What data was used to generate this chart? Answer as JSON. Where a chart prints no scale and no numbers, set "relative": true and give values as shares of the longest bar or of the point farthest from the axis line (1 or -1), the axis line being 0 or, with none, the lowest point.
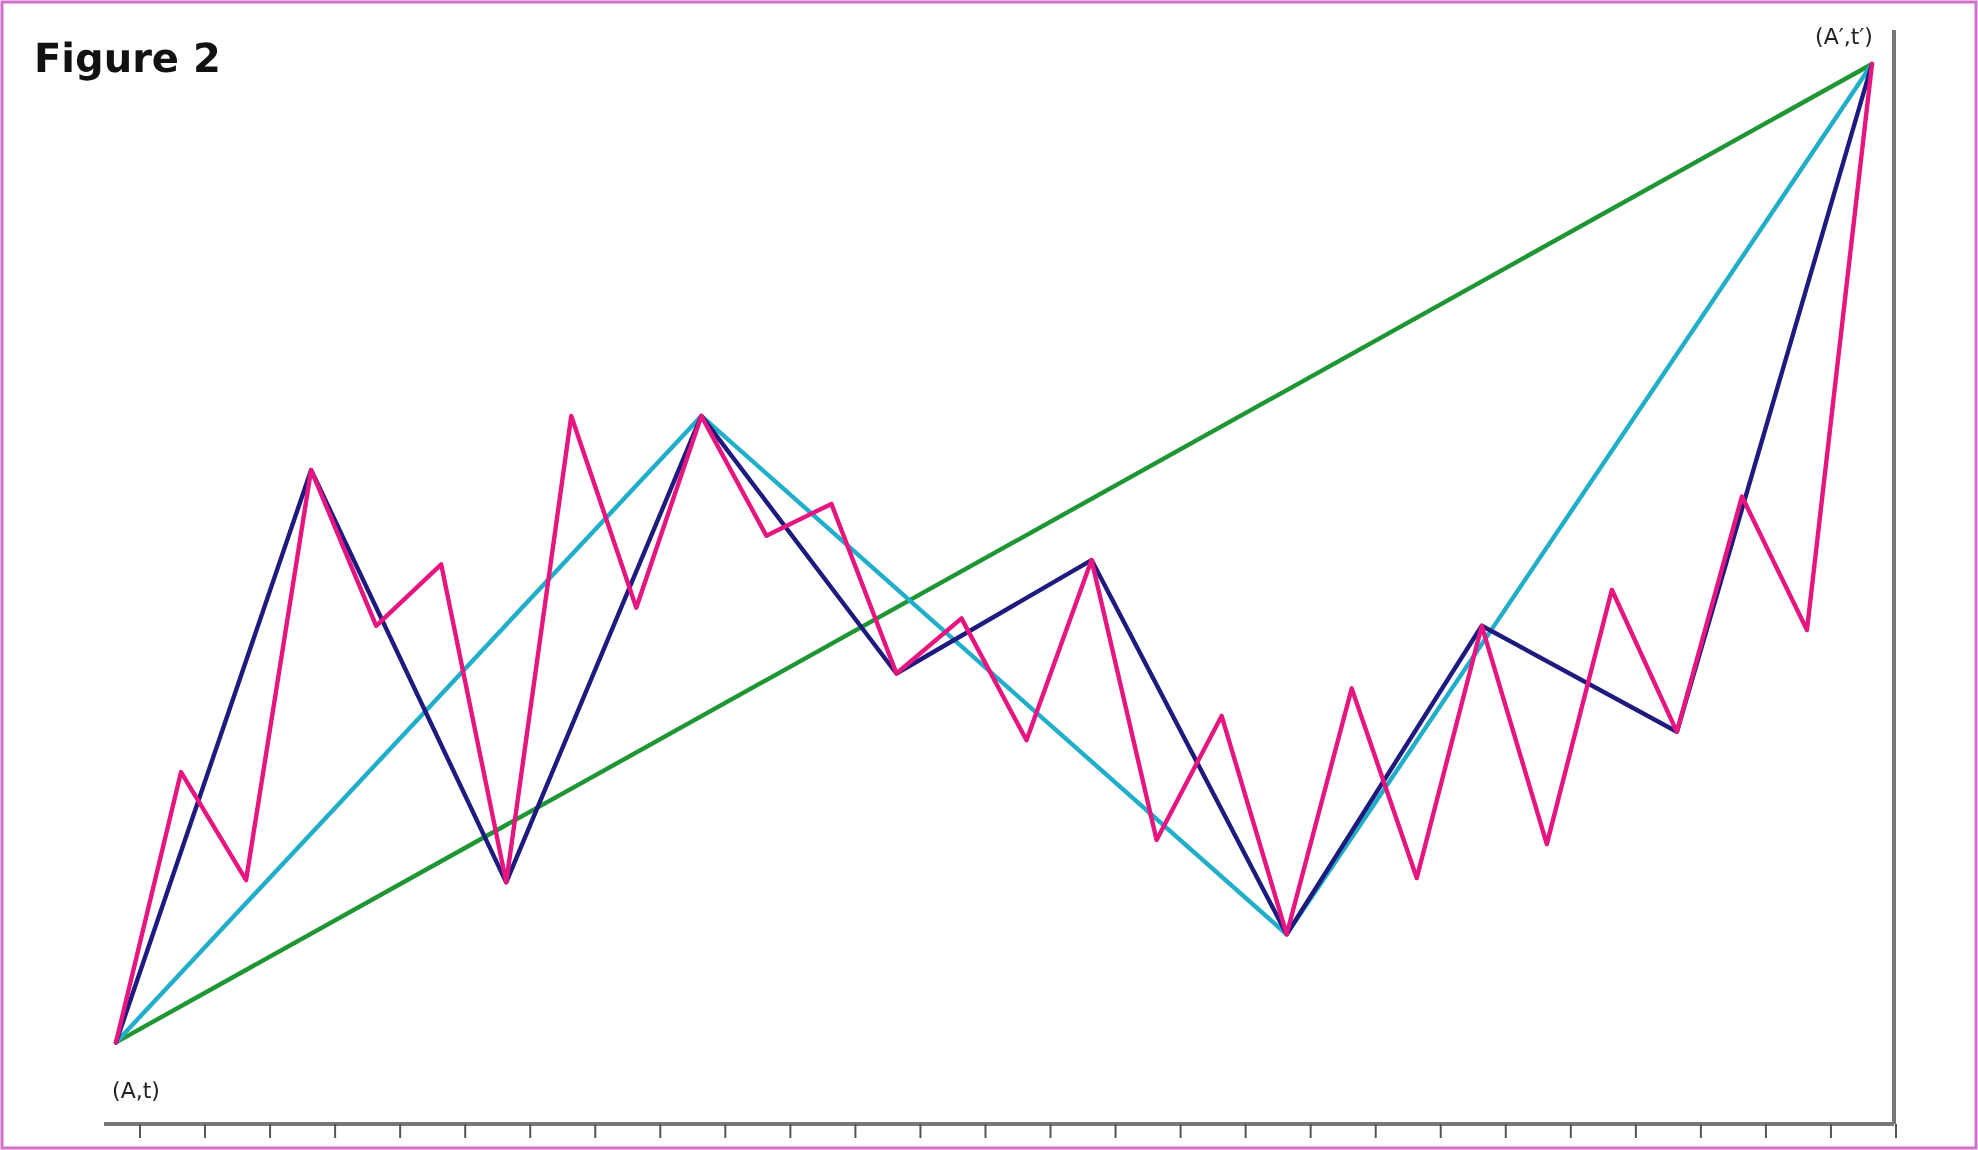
{
  "chart_data": {
    "type": "line",
    "title": "Figure 2",
    "relative": true,
    "categories": [
      null,
      null,
      null,
      null,
      null,
      null,
      null,
      null,
      null,
      null,
      null,
      null,
      null,
      null,
      null,
      null,
      null,
      null,
      null,
      null,
      null,
      null,
      null,
      null,
      null,
      null,
      null,
      null
    ],
    "series": [
      {
        "color": "#e6157f",
        "values": [
          0.077,
          0.332,
          0.23,
          0.617,
          0.47,
          0.528,
          0.228,
          0.668,
          0.487,
          0.668,
          0.555,
          0.585,
          0.425,
          0.477,
          0.362,
          0.532,
          0.268,
          0.385,
          0.179,
          0.411,
          0.232,
          0.47,
          0.264,
          0.504,
          0.37,
          0.592,
          0.466,
          1
        ]
      },
      {
        "color": "#1e1a7e",
        "values": [
          0.077,
          null,
          null,
          0.617,
          null,
          null,
          0.228,
          null,
          null,
          0.668,
          null,
          null,
          0.425,
          null,
          null,
          0.532,
          null,
          null,
          0.179,
          null,
          null,
          0.47,
          null,
          null,
          0.37,
          null,
          null,
          1
        ]
      },
      {
        "color": "#20aec9",
        "values": [
          0.077,
          null,
          null,
          null,
          null,
          null,
          null,
          null,
          null,
          0.668,
          null,
          null,
          null,
          null,
          null,
          null,
          null,
          null,
          0.179,
          null,
          null,
          null,
          null,
          null,
          null,
          null,
          null,
          1
        ]
      },
      {
        "color": "#1e9634",
        "values": [
          0.077,
          null,
          null,
          null,
          null,
          null,
          null,
          null,
          null,
          null,
          null,
          null,
          null,
          null,
          null,
          null,
          null,
          null,
          null,
          null,
          null,
          null,
          null,
          null,
          null,
          null,
          null,
          1
        ]
      }
    ],
    "annotations": [
      "(A,t)",
      "(A′,t′)"
    ],
    "marker": "none",
    "line_style": "solid"
  }
}
